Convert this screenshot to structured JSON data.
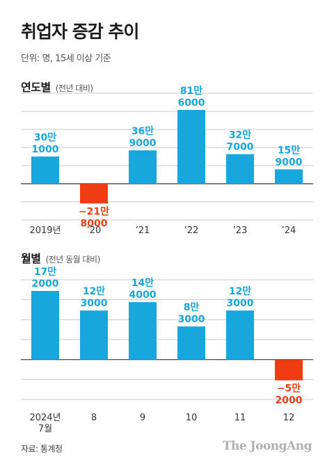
{
  "title": "취업자 증감 추이",
  "unit_note": "단위: 명, 15세 이상 기준",
  "colors": {
    "positive": "#17a7dc",
    "negative": "#f03c14",
    "positive_text": "#17a7dc",
    "negative_text": "#f03c14"
  },
  "source": "자료: 통계청",
  "brand": "The JoongAng",
  "chart_data": [
    {
      "type": "bar",
      "title": "연도별",
      "subtitle": "(전년 대비)",
      "categories": [
        "2019년",
        "’20",
        "’21",
        "’22",
        "’23",
        "’24"
      ],
      "values": [
        301000,
        -218000,
        369000,
        816000,
        327000,
        159000
      ],
      "labels": [
        [
          "30만",
          "1000"
        ],
        [
          "−21만",
          "8000"
        ],
        [
          "36만",
          "9000"
        ],
        [
          "81만",
          "6000"
        ],
        [
          "32만",
          "7000"
        ],
        [
          "15만",
          "9000"
        ]
      ],
      "ylim": [
        -400000,
        1000000
      ],
      "grid": true
    },
    {
      "type": "bar",
      "title": "월별",
      "subtitle": "(전년 동월 대비)",
      "categories": [
        [
          "2024년",
          "7월"
        ],
        [
          "8"
        ],
        [
          "9"
        ],
        [
          "10"
        ],
        [
          "11"
        ],
        [
          "12"
        ]
      ],
      "values": [
        172000,
        123000,
        144000,
        83000,
        123000,
        -52000
      ],
      "labels": [
        [
          "17만",
          "2000"
        ],
        [
          "12만",
          "3000"
        ],
        [
          "14만",
          "4000"
        ],
        [
          "8만",
          "3000"
        ],
        [
          "12만",
          "3000"
        ],
        [
          "−5만",
          "2000"
        ]
      ],
      "ylim": [
        -100000,
        200000
      ],
      "grid": true
    }
  ]
}
